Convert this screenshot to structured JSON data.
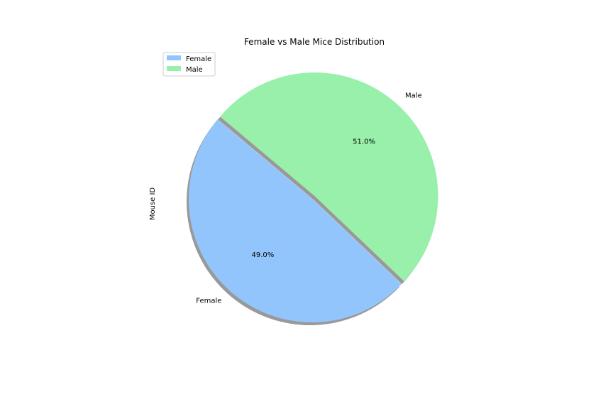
{
  "chart_data": {
    "type": "pie",
    "title": "Female vs Male Mice Distribution",
    "ylabel": "Mouse ID",
    "xlabel": "",
    "categories": [
      "Female",
      "Male"
    ],
    "values": [
      49.0,
      51.0
    ],
    "percent_labels": [
      "49.0%",
      "51.0%"
    ],
    "colors": [
      "#93c5fd",
      "#98f0aa"
    ],
    "explode": [
      0.0,
      0.03
    ],
    "start_angle_deg": 140,
    "shadow": true,
    "legend": {
      "placement": "upper-left",
      "entries": [
        "Female",
        "Male"
      ]
    }
  }
}
